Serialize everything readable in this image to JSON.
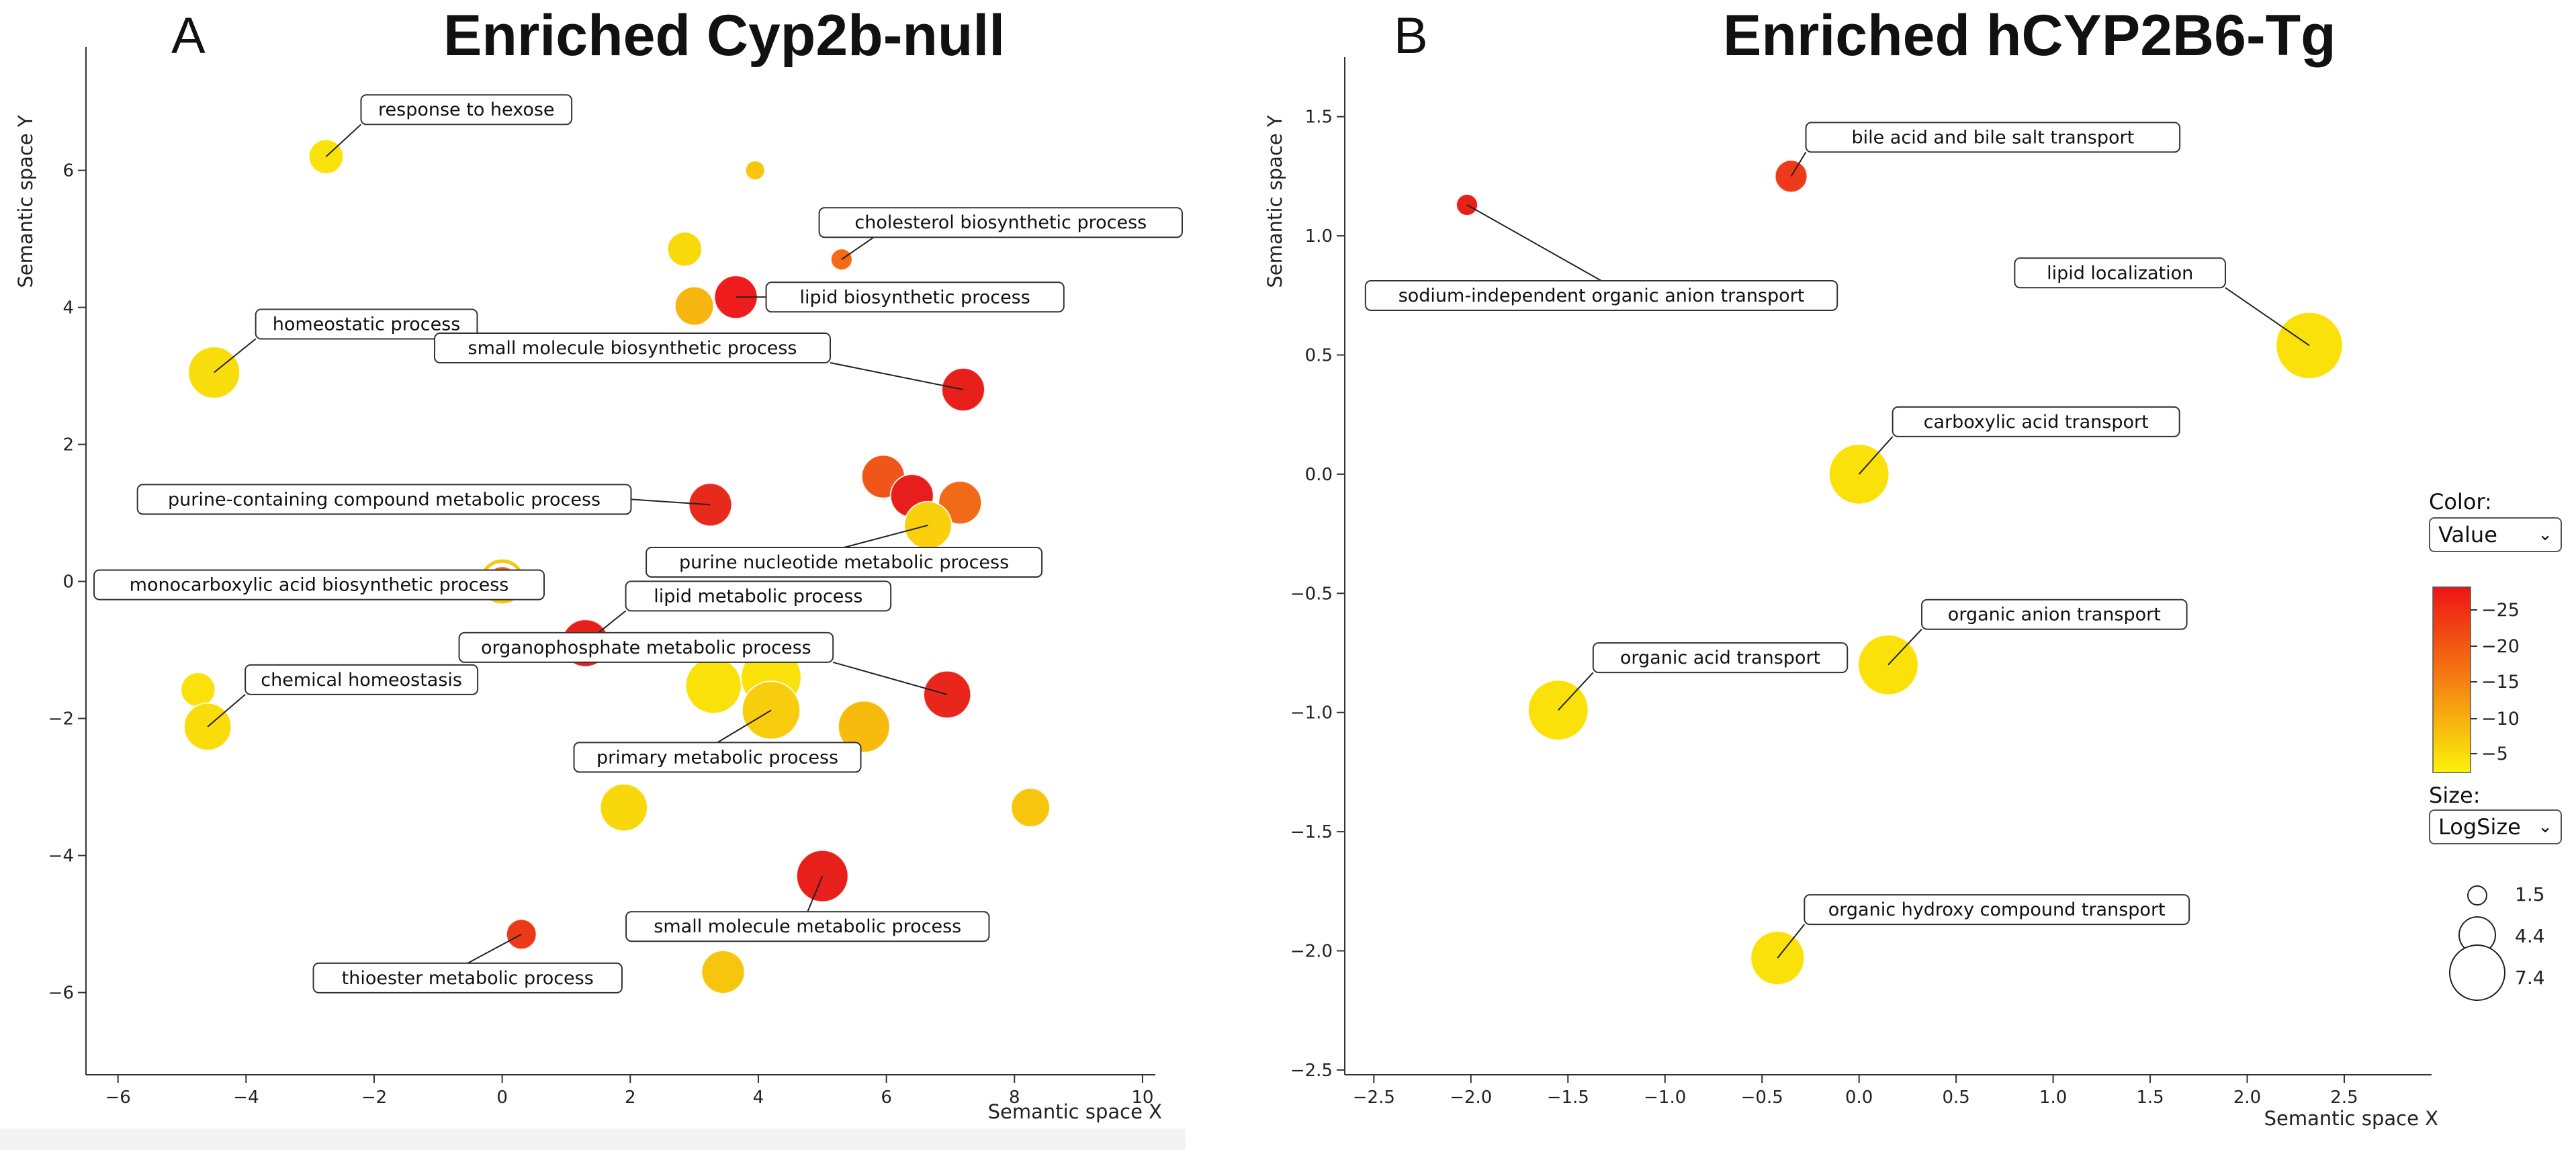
{
  "panel_a": {
    "letter": "A",
    "title": "Enriched Cyp2b-null"
  },
  "panel_b": {
    "letter": "B",
    "title": "Enriched hCYP2B6-Tg"
  },
  "controls": {
    "color_label": "Color:",
    "color_value": "Value",
    "size_label": "Size:",
    "size_value": "LogSize",
    "colorbar_ticks": [
      "-25",
      "-20",
      "-15",
      "-10",
      "-5"
    ],
    "size_legend": [
      "1.5",
      "4.4",
      "7.4"
    ]
  },
  "chart_data": [
    {
      "type": "scatter",
      "title": "Enriched Cyp2b-null",
      "xlabel": "Semantic space X",
      "ylabel": "Semantic space Y",
      "xlim": [
        -6.5,
        10.2
      ],
      "ylim": [
        -7.2,
        7.8
      ],
      "xticks": [
        -6,
        -4,
        -2,
        0,
        2,
        4,
        6,
        8,
        10
      ],
      "yticks": [
        6,
        4,
        2,
        0,
        -2,
        -4,
        -6
      ],
      "points": [
        {
          "x": -2.75,
          "y": 6.2,
          "r": 1.6,
          "color": "#f9e20a",
          "label": "response to hexose"
        },
        {
          "x": 3.95,
          "y": 6.0,
          "r": 0.9,
          "color": "#f8c50c",
          "label": ""
        },
        {
          "x": 2.85,
          "y": 4.85,
          "r": 1.6,
          "color": "#fad90b",
          "label": ""
        },
        {
          "x": 5.3,
          "y": 4.7,
          "r": 1.0,
          "color": "#f56a14",
          "label": "cholesterol biosynthetic process"
        },
        {
          "x": 3.0,
          "y": 4.02,
          "r": 1.8,
          "color": "#f7b50f",
          "label": ""
        },
        {
          "x": 3.65,
          "y": 4.15,
          "r": 2.0,
          "color": "#ee1c1c",
          "label": "lipid biosynthetic process"
        },
        {
          "x": -4.5,
          "y": 3.05,
          "r": 2.4,
          "color": "#f9dc0b",
          "label": "homeostatic process"
        },
        {
          "x": 7.2,
          "y": 2.8,
          "r": 2.0,
          "color": "#e8201c",
          "label": "small molecule biosynthetic process"
        },
        {
          "x": 5.95,
          "y": 1.53,
          "r": 2.0,
          "color": "#f0561a",
          "label": ""
        },
        {
          "x": 6.4,
          "y": 1.25,
          "r": 2.0,
          "color": "#e81e1c",
          "label": ""
        },
        {
          "x": 7.15,
          "y": 1.15,
          "r": 2.0,
          "color": "#f06a18",
          "label": ""
        },
        {
          "x": 6.65,
          "y": 0.82,
          "r": 2.2,
          "color": "#fad00c",
          "label": "purine nucleotide metabolic process"
        },
        {
          "x": 3.25,
          "y": 1.12,
          "r": 2.0,
          "color": "#e82a1c",
          "label": "purine-containing compound metabolic process"
        },
        {
          "x": 0.0,
          "y": 0.0,
          "r": 1.4,
          "color": "#f16219",
          "label": "monocarboxylic acid biosynthetic process",
          "ring": true
        },
        {
          "x": 1.3,
          "y": -0.9,
          "r": 2.2,
          "color": "#e8201c",
          "label": "lipid metabolic process"
        },
        {
          "x": 6.95,
          "y": -1.65,
          "r": 2.2,
          "color": "#e8261c",
          "label": "organophosphate metabolic process"
        },
        {
          "x": -4.75,
          "y": -1.58,
          "r": 1.6,
          "color": "#fae10a",
          "label": ""
        },
        {
          "x": -4.6,
          "y": -2.12,
          "r": 2.2,
          "color": "#fadc0a",
          "label": "chemical homeostasis"
        },
        {
          "x": 3.3,
          "y": -1.52,
          "r": 2.6,
          "color": "#fae10a",
          "label": ""
        },
        {
          "x": 4.2,
          "y": -1.4,
          "r": 2.8,
          "color": "#fae10a",
          "label": ""
        },
        {
          "x": 4.2,
          "y": -1.88,
          "r": 2.7,
          "color": "#f8cd0d",
          "label": "primary metabolic process"
        },
        {
          "x": 5.65,
          "y": -2.12,
          "r": 2.4,
          "color": "#f7bb0e",
          "label": ""
        },
        {
          "x": 1.9,
          "y": -3.3,
          "r": 2.2,
          "color": "#f9d80b",
          "label": ""
        },
        {
          "x": 8.25,
          "y": -3.3,
          "r": 1.8,
          "color": "#f7c50d",
          "label": ""
        },
        {
          "x": 5.0,
          "y": -4.3,
          "r": 2.4,
          "color": "#e8201c",
          "label": "small molecule metabolic process"
        },
        {
          "x": 0.3,
          "y": -5.15,
          "r": 1.4,
          "color": "#ec3a18",
          "label": "thioester metabolic process"
        },
        {
          "x": 3.45,
          "y": -5.7,
          "r": 2.0,
          "color": "#f7c50d",
          "label": ""
        }
      ]
    },
    {
      "type": "scatter",
      "title": "Enriched hCYP2B6-Tg",
      "xlabel": "Semantic space X",
      "ylabel": "Semantic space Y",
      "xlim": [
        -2.65,
        2.95
      ],
      "ylim": [
        -2.52,
        1.75
      ],
      "xticks": [
        -2.5,
        -2.0,
        -1.5,
        -1.0,
        -0.5,
        0.0,
        0.5,
        1.0,
        1.5,
        2.0,
        2.5
      ],
      "yticks": [
        1.5,
        1.0,
        0.5,
        0.0,
        -0.5,
        -1.0,
        -1.5,
        -2.0,
        -2.5
      ],
      "points": [
        {
          "x": -2.02,
          "y": 1.13,
          "r": 1.0,
          "color": "#e8201c",
          "label": "sodium-independent organic anion transport"
        },
        {
          "x": -0.35,
          "y": 1.25,
          "r": 1.5,
          "color": "#ee3a18",
          "label": "bile acid and bile salt transport"
        },
        {
          "x": 2.32,
          "y": 0.54,
          "r": 3.1,
          "color": "#fae10a",
          "label": "lipid localization"
        },
        {
          "x": 0.0,
          "y": 0.0,
          "r": 2.8,
          "color": "#fae10a",
          "label": "carboxylic acid transport"
        },
        {
          "x": 0.15,
          "y": -0.8,
          "r": 2.8,
          "color": "#fae10a",
          "label": "organic anion transport"
        },
        {
          "x": -1.55,
          "y": -0.99,
          "r": 2.8,
          "color": "#fae10a",
          "label": "organic acid transport"
        },
        {
          "x": -0.42,
          "y": -2.03,
          "r": 2.5,
          "color": "#fae10a",
          "label": "organic hydroxy compound transport"
        }
      ]
    }
  ]
}
